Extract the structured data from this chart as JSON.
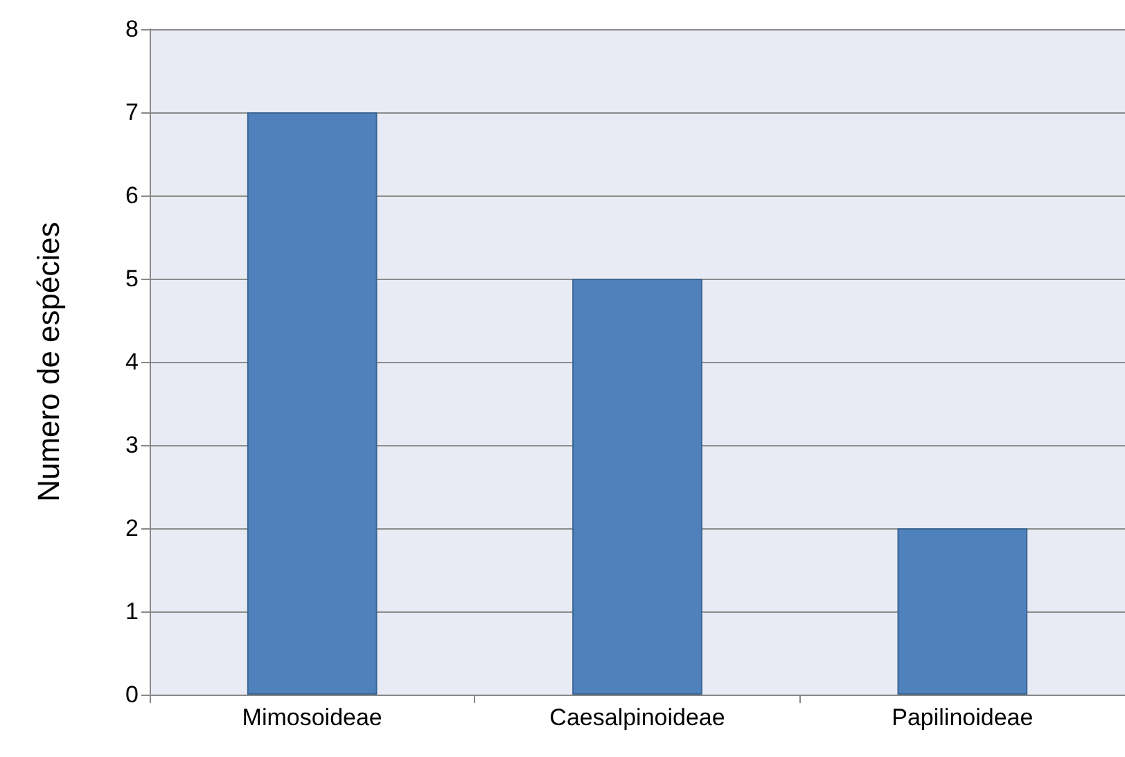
{
  "chart_data": {
    "type": "bar",
    "ylabel": "Numero de espécies",
    "categories": [
      "Mimosoideae",
      "Caesalpinoideae",
      "Papilinoideae"
    ],
    "values": [
      7,
      5,
      2
    ],
    "color": "#4f81bd",
    "ylim": [
      0,
      8
    ],
    "yticks": [
      0,
      1,
      2,
      3,
      4,
      5,
      6,
      7,
      8
    ],
    "grid": "y"
  }
}
